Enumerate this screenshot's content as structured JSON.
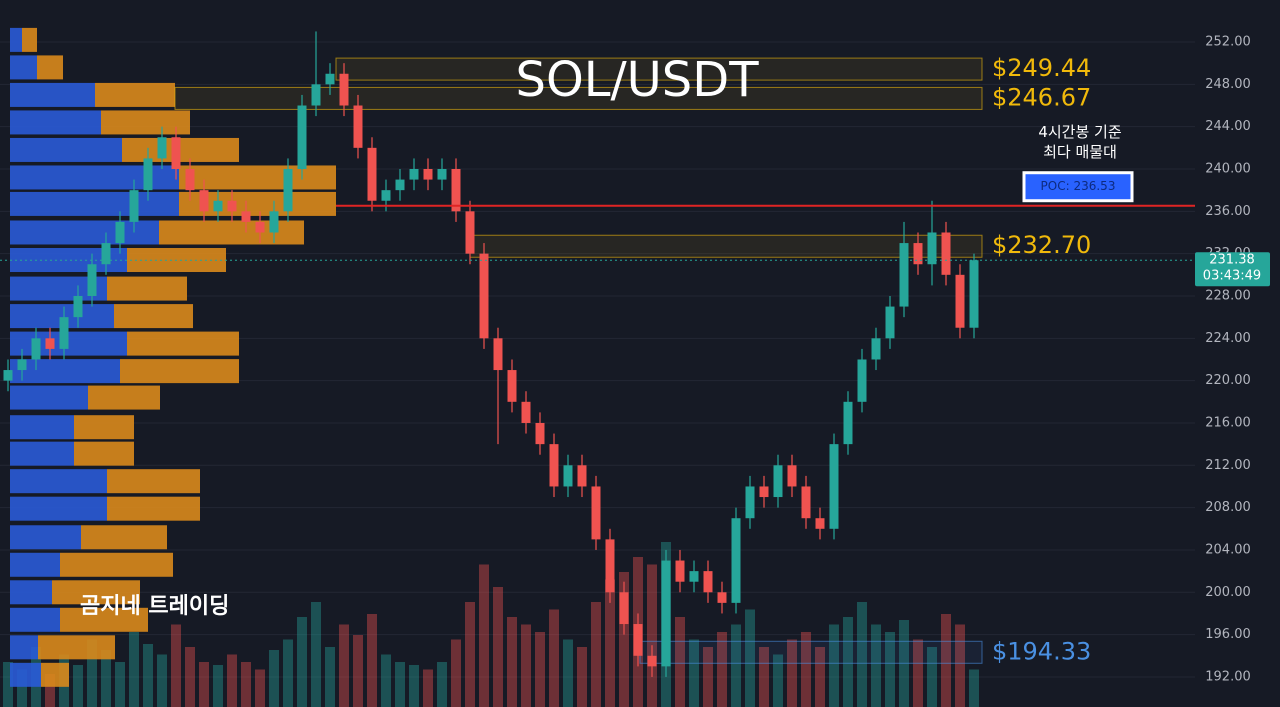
{
  "chart_data": {
    "type": "candlestick",
    "title": "SOL/USDT",
    "open": [
      220,
      221,
      222,
      224,
      223,
      226,
      228,
      231,
      233,
      235,
      238,
      241,
      243,
      240,
      238,
      236,
      237,
      236,
      235,
      234,
      236,
      240,
      246,
      248,
      249,
      246,
      242,
      237,
      238,
      239,
      240,
      239,
      240,
      236,
      232,
      224,
      221,
      218,
      216,
      214,
      210,
      212,
      210,
      205,
      200,
      197,
      194,
      193,
      203,
      201,
      202,
      200,
      199,
      207,
      210,
      209,
      212,
      210,
      207,
      206,
      214,
      218,
      222,
      224,
      227,
      233,
      231,
      234,
      230,
      225
    ],
    "high": [
      222,
      223,
      225,
      225,
      227,
      229,
      232,
      234,
      236,
      239,
      242,
      244,
      244,
      241,
      239,
      238,
      238,
      237,
      236,
      237,
      241,
      247,
      253,
      250,
      250,
      247,
      243,
      239,
      240,
      241,
      241,
      241,
      241,
      237,
      233,
      225,
      222,
      219,
      217,
      215,
      213,
      213,
      211,
      206,
      201,
      198,
      195,
      204,
      204,
      203,
      203,
      201,
      208,
      211,
      211,
      213,
      213,
      211,
      208,
      215,
      219,
      223,
      225,
      228,
      235,
      234,
      237,
      235,
      231,
      232
    ],
    "low": [
      219,
      220,
      221,
      222,
      222,
      225,
      227,
      230,
      232,
      234,
      237,
      240,
      239,
      237,
      235,
      235,
      235,
      234,
      233,
      233,
      235,
      239,
      245,
      247,
      245,
      241,
      236,
      236,
      237,
      238,
      238,
      238,
      235,
      231,
      223,
      214,
      217,
      215,
      213,
      209,
      209,
      209,
      204,
      199,
      196,
      193,
      192,
      192,
      200,
      200,
      199,
      198,
      198,
      206,
      208,
      208,
      209,
      206,
      205,
      205,
      213,
      217,
      221,
      223,
      226,
      230,
      229,
      229,
      224,
      224
    ],
    "close": [
      221,
      222,
      224,
      223,
      226,
      228,
      231,
      233,
      235,
      238,
      241,
      243,
      240,
      238,
      236,
      237,
      236,
      235,
      234,
      236,
      240,
      246,
      248,
      249,
      246,
      242,
      237,
      238,
      239,
      240,
      239,
      240,
      236,
      232,
      224,
      221,
      218,
      216,
      214,
      210,
      212,
      210,
      205,
      200,
      197,
      194,
      193,
      203,
      201,
      202,
      200,
      199,
      207,
      210,
      209,
      212,
      210,
      207,
      206,
      214,
      218,
      222,
      224,
      227,
      233,
      231,
      234,
      230,
      225,
      231.38
    ],
    "volume": [
      30,
      25,
      40,
      22,
      35,
      28,
      45,
      38,
      30,
      50,
      42,
      35,
      55,
      40,
      30,
      28,
      35,
      30,
      25,
      38,
      45,
      60,
      70,
      40,
      55,
      48,
      62,
      35,
      30,
      28,
      25,
      30,
      45,
      70,
      95,
      80,
      60,
      55,
      50,
      65,
      45,
      40,
      70,
      85,
      90,
      100,
      95,
      110,
      60,
      45,
      40,
      50,
      55,
      65,
      40,
      35,
      45,
      50,
      40,
      55,
      60,
      70,
      55,
      50,
      58,
      45,
      40,
      62,
      55,
      25
    ],
    "up_color": "#26a69a",
    "down_color": "#ef5350",
    "ylim": [
      189.16,
      255.97
    ],
    "yticks": [
      {
        "value": 192,
        "label": "192.00"
      },
      {
        "value": 196,
        "label": "196.00"
      },
      {
        "value": 200,
        "label": "200.00"
      },
      {
        "value": 204,
        "label": "204.00"
      },
      {
        "value": 208,
        "label": "208.00"
      },
      {
        "value": 212,
        "label": "212.00"
      },
      {
        "value": 216,
        "label": "216.00"
      },
      {
        "value": 220,
        "label": "220.00"
      },
      {
        "value": 224,
        "label": "224.00"
      },
      {
        "value": 228,
        "label": "228.00"
      },
      {
        "value": 232,
        "label": "232.00"
      },
      {
        "value": 236,
        "label": "236.00"
      },
      {
        "value": 240,
        "label": "240.00"
      },
      {
        "value": 244,
        "label": "244.00"
      },
      {
        "value": 248,
        "label": "248.00"
      },
      {
        "value": 252,
        "label": "252.00"
      }
    ],
    "grid": true,
    "levels": [
      {
        "value": 249.44,
        "label": "$249.44",
        "color": "#f0b90b"
      },
      {
        "value": 246.67,
        "label": "$246.67",
        "color": "#f0b90b"
      },
      {
        "value": 232.7,
        "label": "$232.70",
        "color": "#f0b90b"
      },
      {
        "value": 194.33,
        "label": "$194.33",
        "color": "#4a90e2"
      }
    ],
    "poc": {
      "value": 236.53,
      "label": "POC: 236.53",
      "note": [
        "4시간봉 기준",
        "최다 매물대"
      ],
      "color": "#e02424"
    },
    "last_price": {
      "value": 231.38,
      "countdown": "03:43:49",
      "color": "#26a69a"
    },
    "volume_profile": {
      "prices": [
        252.2,
        249.6,
        247,
        244.4,
        241.8,
        239.2,
        236.7,
        234,
        231.4,
        228.7,
        226.1,
        223.5,
        220.9,
        218.4,
        215.6,
        213.1,
        210.5,
        207.9,
        205.2,
        202.6,
        200,
        197.4,
        194.8,
        192.2
      ],
      "up": [
        12,
        27,
        85,
        91,
        112,
        169,
        169,
        149,
        117,
        97,
        104,
        117,
        110,
        78,
        64,
        64,
        97,
        97,
        71,
        50,
        42,
        50,
        28,
        31
      ],
      "down": [
        15,
        26,
        80,
        89,
        117,
        157,
        157,
        145,
        99,
        80,
        79,
        112,
        119,
        72,
        60,
        60,
        93,
        93,
        86,
        113,
        88,
        88,
        77,
        28
      ],
      "up_color": "#2a5bd7",
      "down_color": "#d98a1c"
    },
    "watermark": "곰지네 트레이딩"
  }
}
